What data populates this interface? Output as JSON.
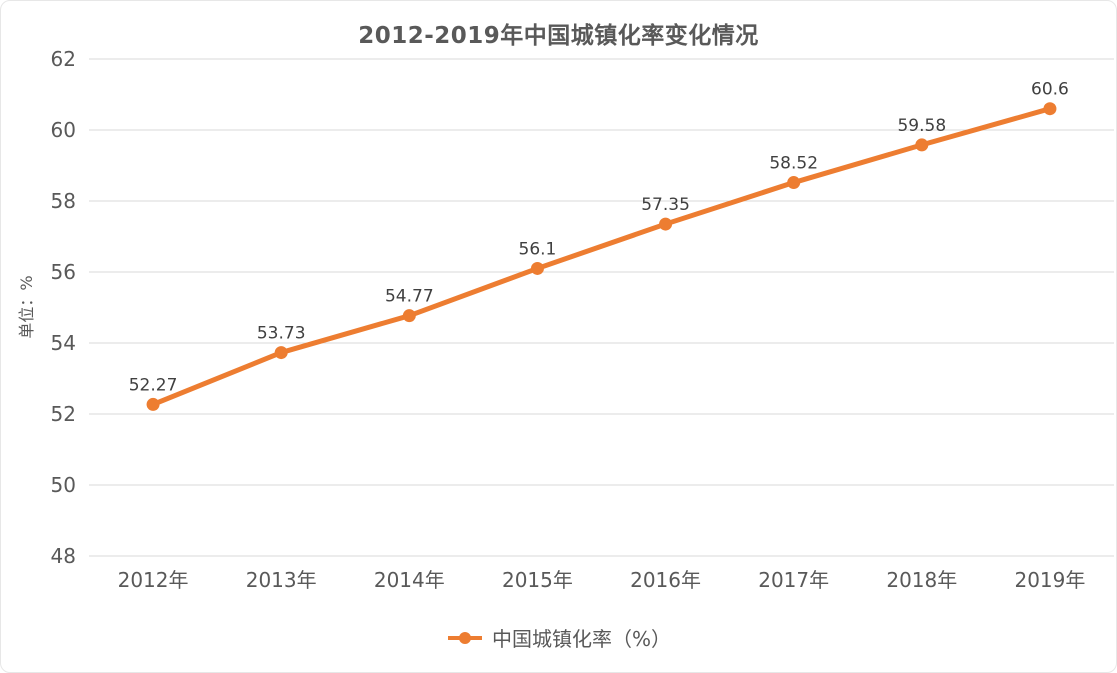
{
  "chart_data": {
    "type": "line",
    "title": "2012-2019年中国城镇化率变化情况",
    "categories": [
      "2012年",
      "2013年",
      "2014年",
      "2015年",
      "2016年",
      "2017年",
      "2018年",
      "2019年"
    ],
    "series": [
      {
        "name": "中国城镇化率（%）",
        "values": [
          52.27,
          53.73,
          54.77,
          56.1,
          57.35,
          58.52,
          59.58,
          60.6
        ]
      }
    ],
    "data_labels": [
      "52.27",
      "53.73",
      "54.77",
      "56.1",
      "57.35",
      "58.52",
      "59.58",
      "60.6"
    ],
    "xlabel": "",
    "ylabel": "单位：%",
    "ylim": [
      48,
      62
    ],
    "y_ticks": [
      48,
      50,
      52,
      54,
      56,
      58,
      60,
      62
    ],
    "grid": "horizontal",
    "legend_position": "bottom",
    "marker": "circle"
  },
  "colors": {
    "accent": "#ED7D31",
    "gridline": "#D9D9D9",
    "axis_text": "#595959",
    "data_label_text": "#404040",
    "title_text": "#595959",
    "card_border": "#E7E7E7",
    "background": "#FFFFFF"
  },
  "legend": {
    "label": "中国城镇化率（%）"
  }
}
